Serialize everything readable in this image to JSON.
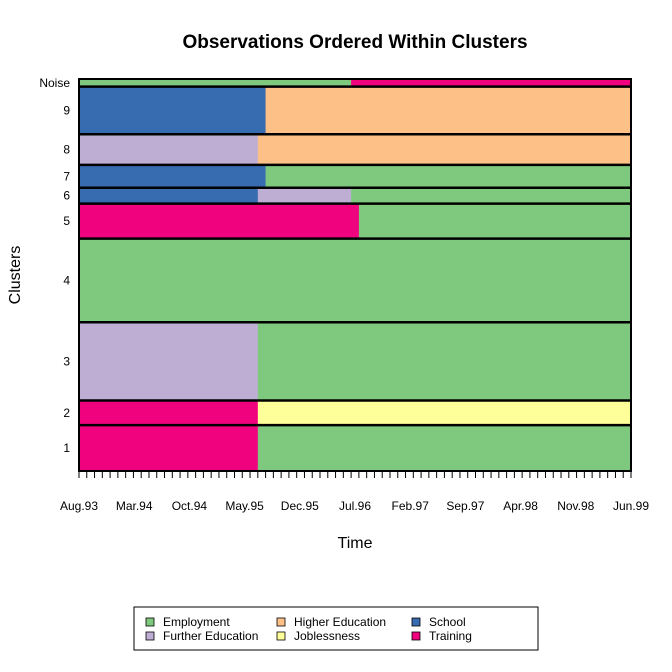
{
  "chart_data": {
    "type": "heatmap",
    "title": "Observations Ordered Within Clusters",
    "xlabel": "Time",
    "ylabel": "Clusters",
    "x_ticks": [
      "Aug.93",
      "Mar.94",
      "Oct.94",
      "May.95",
      "Dec.95",
      "Jul.96",
      "Feb.97",
      "Sep.97",
      "Apr.98",
      "Nov.98",
      "Jun.99"
    ],
    "time_start": "Aug.93",
    "time_end": "Jun.99",
    "months": 71,
    "clusters": [
      "1",
      "2",
      "3",
      "4",
      "5",
      "6",
      "7",
      "8",
      "9",
      "Noise"
    ],
    "cluster_sizes": [
      84,
      45,
      143,
      153,
      64,
      29,
      42,
      56,
      87,
      14
    ],
    "states": [
      {
        "name": "Employment",
        "color": "#7fc97f"
      },
      {
        "name": "Further Education",
        "color": "#beaed4"
      },
      {
        "name": "Higher Education",
        "color": "#fdc086"
      },
      {
        "name": "Joblessness",
        "color": "#ffff99"
      },
      {
        "name": "School",
        "color": "#386cb0"
      },
      {
        "name": "Training",
        "color": "#f0027f"
      }
    ],
    "cluster_patterns": [
      [
        [
          "Training",
          23
        ],
        [
          "Employment",
          48
        ]
      ],
      [
        [
          "Training",
          23
        ],
        [
          "Joblessness",
          48
        ]
      ],
      [
        [
          "Further Education",
          23
        ],
        [
          "Employment",
          48
        ]
      ],
      [
        [
          "Employment",
          71
        ]
      ],
      [
        [
          "Training",
          36
        ],
        [
          "Employment",
          35
        ]
      ],
      [
        [
          "School",
          23
        ],
        [
          "Further Education",
          12
        ],
        [
          "Employment",
          36
        ]
      ],
      [
        [
          "School",
          24
        ],
        [
          "Employment",
          47
        ]
      ],
      [
        [
          "Further Education",
          23
        ],
        [
          "Higher Education",
          48
        ]
      ],
      [
        [
          "School",
          24
        ],
        [
          "Higher Education",
          47
        ]
      ],
      [
        [
          "Employment",
          35
        ],
        [
          "Training",
          36
        ]
      ]
    ],
    "legend": {
      "position": "bottom",
      "rows": [
        [
          "Employment",
          "Higher Education",
          "School"
        ],
        [
          "Further Education",
          "Joblessness",
          "Training"
        ]
      ]
    }
  }
}
